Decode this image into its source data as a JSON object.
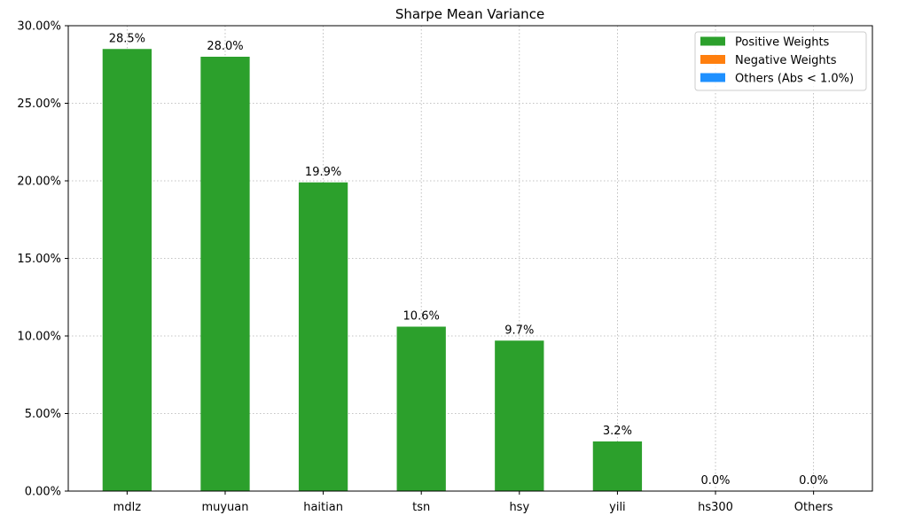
{
  "chart_data": {
    "type": "bar",
    "title": "Sharpe Mean Variance",
    "xlabel": "",
    "ylabel": "",
    "categories": [
      "mdlz",
      "muyuan",
      "haitian",
      "tsn",
      "hsy",
      "yili",
      "hs300",
      "Others"
    ],
    "values": [
      28.5,
      28.0,
      19.9,
      10.6,
      9.7,
      3.2,
      0.0,
      0.0
    ],
    "value_labels": [
      "28.5%",
      "28.0%",
      "19.9%",
      "10.6%",
      "9.7%",
      "3.2%",
      "0.0%",
      "0.0%"
    ],
    "ylim": [
      0,
      30
    ],
    "yticks": [
      0,
      5,
      10,
      15,
      20,
      25,
      30
    ],
    "ytick_labels": [
      "0.00%",
      "5.00%",
      "10.00%",
      "15.00%",
      "20.00%",
      "25.00%",
      "30.00%"
    ],
    "grid": true,
    "legend_position": "top-right",
    "legend": [
      {
        "label": "Positive Weights",
        "color": "#2ca02c"
      },
      {
        "label": "Negative Weights",
        "color": "#ff7f0e"
      },
      {
        "label": "Others (Abs < 1.0%)",
        "color": "#1e90ff"
      }
    ],
    "bar_color": "#2ca02c"
  }
}
